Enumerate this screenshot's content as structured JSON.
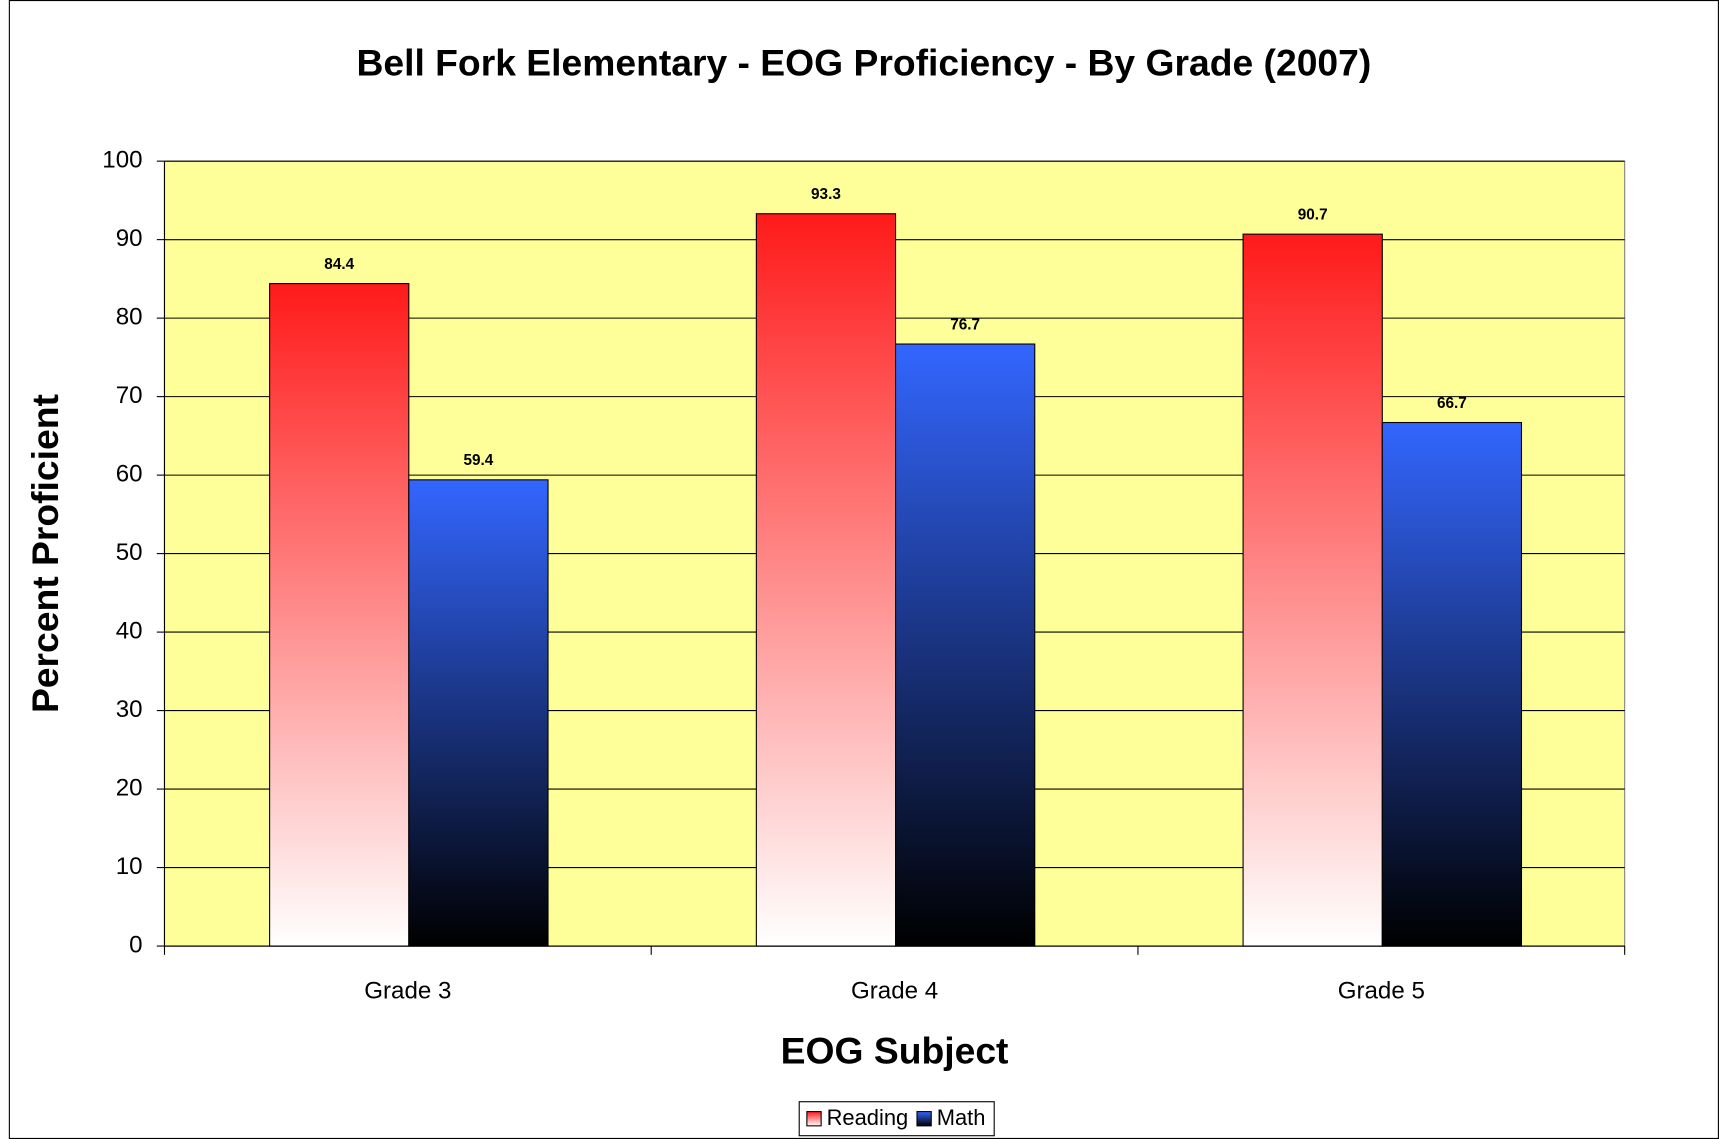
{
  "chart_data": {
    "type": "bar",
    "title": "Bell Fork Elementary - EOG Proficiency - By Grade (2007)",
    "x_label": "EOG Subject",
    "y_label": "Percent Proficient",
    "categories": [
      "Grade 3",
      "Grade 4",
      "Grade 5"
    ],
    "series": [
      {
        "name": "Reading",
        "color": "#ff1a1a",
        "gradient_to": "#ffffff",
        "values": [
          84.4,
          93.3,
          90.7
        ]
      },
      {
        "name": "Math",
        "color": "#3366ff",
        "gradient_to": "#000000",
        "values": [
          59.4,
          76.7,
          66.7
        ]
      }
    ],
    "ylim": [
      0,
      100
    ],
    "yticks": [
      0,
      10,
      20,
      30,
      40,
      50,
      60,
      70,
      80,
      90,
      100
    ],
    "grid": true,
    "legend": "bottom",
    "plot_background": "#ffff99"
  }
}
